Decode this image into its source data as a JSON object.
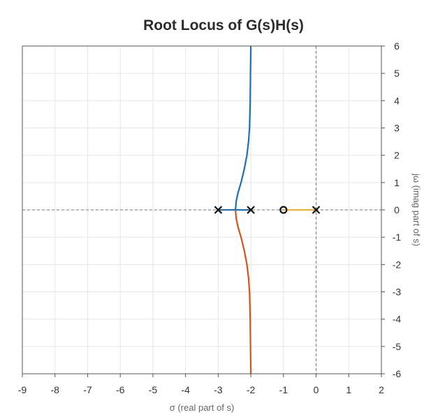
{
  "chart_data": {
    "type": "line",
    "title": "Root Locus of G(s)H(s)",
    "xlabel": "σ (real part of s)",
    "ylabel": "jω (imag part of s)",
    "xlim": [
      -9,
      2
    ],
    "ylim": [
      -6,
      6
    ],
    "x_ticks": [
      "-9",
      "-8",
      "-7",
      "-6",
      "-5",
      "-4",
      "-3",
      "-2",
      "-1",
      "0",
      "1",
      "2"
    ],
    "y_ticks": [
      "6",
      "5",
      "4",
      "3",
      "2",
      "1",
      "0",
      "-1",
      "-2",
      "-3",
      "-4",
      "-5",
      "-6"
    ],
    "y_axis_side": "right",
    "grid": true,
    "reference_lines": {
      "real_axis": 0,
      "imag_axis": 0,
      "style": "dashed"
    },
    "poles": [
      {
        "x": -3,
        "y": 0
      },
      {
        "x": -2,
        "y": 0
      },
      {
        "x": 0,
        "y": 0
      }
    ],
    "zeros": [
      {
        "x": -1,
        "y": 0
      }
    ],
    "series": [
      {
        "color": "#1f6fb4",
        "points": [
          [
            -3.0,
            0
          ],
          [
            -2.47,
            0
          ],
          [
            -2.45,
            0.3
          ],
          [
            -2.4,
            0.6
          ],
          [
            -2.3,
            1.0
          ],
          [
            -2.2,
            1.5
          ],
          [
            -2.12,
            2.0
          ],
          [
            -2.07,
            2.5
          ],
          [
            -2.04,
            3.0
          ],
          [
            -2.02,
            4.0
          ],
          [
            -2.01,
            5.0
          ],
          [
            -2.0,
            6.0
          ]
        ]
      },
      {
        "color": "#1f6fb4",
        "points": [
          [
            -2.0,
            0
          ],
          [
            -2.47,
            0
          ]
        ]
      },
      {
        "color": "#d4541d",
        "points": [
          [
            -2.47,
            0
          ],
          [
            -2.45,
            -0.3
          ],
          [
            -2.4,
            -0.6
          ],
          [
            -2.3,
            -1.0
          ],
          [
            -2.2,
            -1.5
          ],
          [
            -2.12,
            -2.0
          ],
          [
            -2.07,
            -2.5
          ],
          [
            -2.04,
            -3.0
          ],
          [
            -2.02,
            -4.0
          ],
          [
            -2.01,
            -5.0
          ],
          [
            -2.0,
            -6.0
          ]
        ]
      },
      {
        "color": "#f0b030",
        "points": [
          [
            0,
            0
          ],
          [
            -1,
            0
          ]
        ]
      }
    ]
  }
}
